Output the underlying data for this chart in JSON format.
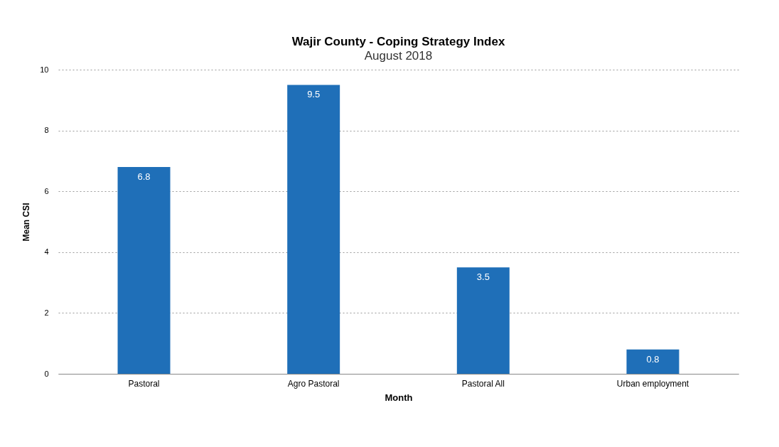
{
  "chart_data": {
    "type": "bar",
    "title": "Wajir County - Coping Strategy Index",
    "subtitle": "August 2018",
    "xlabel": "Month",
    "ylabel": "Mean CSI",
    "categories": [
      "Pastoral",
      "Agro Pastoral",
      "Pastoral All",
      "Urban employment"
    ],
    "values": [
      6.8,
      9.5,
      3.5,
      0.8
    ],
    "color": "#1f6fb8",
    "ylim": [
      0,
      10
    ],
    "yticks": [
      0,
      2,
      4,
      6,
      8,
      10
    ],
    "grid": "y",
    "data_labels": true
  }
}
